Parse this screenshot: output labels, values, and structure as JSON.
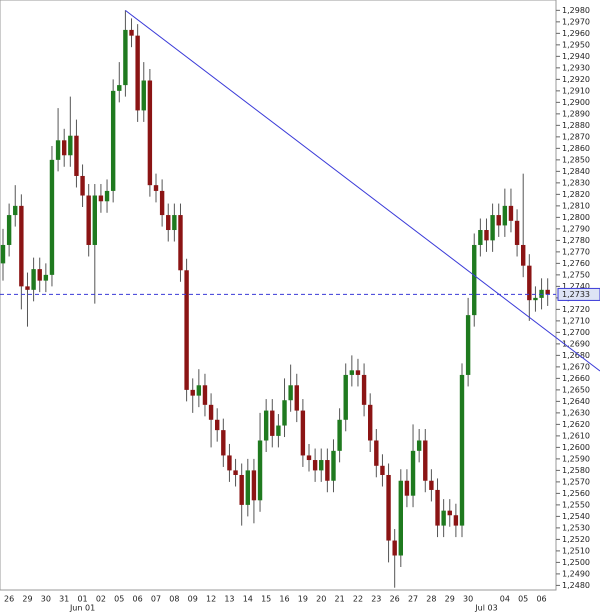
{
  "chart_data": {
    "type": "candlestick",
    "categories": [
      null,
      "26",
      null,
      null,
      "29",
      null,
      null,
      "30",
      null,
      null,
      "31",
      null,
      null,
      "01",
      null,
      null,
      "02",
      null,
      null,
      "05",
      null,
      null,
      "06",
      null,
      null,
      "07",
      null,
      null,
      "08",
      null,
      null,
      "09",
      null,
      null,
      "12",
      null,
      null,
      "13",
      null,
      null,
      "14",
      null,
      null,
      "15",
      null,
      null,
      "16",
      null,
      null,
      "19",
      null,
      null,
      "20",
      null,
      null,
      "21",
      null,
      null,
      "22",
      null,
      null,
      "23",
      null,
      null,
      "26",
      null,
      null,
      "27",
      null,
      null,
      "28",
      null,
      null,
      "29",
      null,
      null,
      "30",
      null,
      null,
      null,
      null,
      null,
      "04",
      null,
      null,
      "05",
      null,
      null,
      "06",
      null
    ],
    "month_labels": [
      null,
      null,
      null,
      null,
      null,
      null,
      null,
      null,
      null,
      null,
      null,
      null,
      null,
      "Jun 01",
      null,
      null,
      null,
      null,
      null,
      null,
      null,
      null,
      null,
      null,
      null,
      null,
      null,
      null,
      null,
      null,
      null,
      null,
      null,
      null,
      null,
      null,
      null,
      null,
      null,
      null,
      null,
      null,
      null,
      null,
      null,
      null,
      null,
      null,
      null,
      null,
      null,
      null,
      null,
      null,
      null,
      null,
      null,
      null,
      null,
      null,
      null,
      null,
      null,
      null,
      null,
      null,
      null,
      null,
      null,
      null,
      null,
      null,
      null,
      null,
      null,
      null,
      null,
      null,
      null,
      "Jul 03",
      null,
      null,
      null,
      null,
      null,
      null,
      null,
      null,
      null,
      null
    ],
    "open": [
      1.276,
      1.2776,
      1.2802,
      1.281,
      1.274,
      1.2737,
      1.2755,
      1.2745,
      1.275,
      1.285,
      1.2867,
      1.2854,
      1.2871,
      1.2836,
      1.2819,
      1.2776,
      1.2819,
      1.2814,
      1.2823,
      1.291,
      1.2915,
      1.2963,
      1.2958,
      1.2893,
      1.2919,
      1.2828,
      1.2823,
      1.2802,
      1.2789,
      1.2802,
      1.2754,
      1.265,
      1.2645,
      1.2654,
      1.2637,
      1.2624,
      1.2615,
      1.2593,
      1.258,
      1.2576,
      1.255,
      1.258,
      1.2554,
      1.2606,
      1.2632,
      1.261,
      1.2619,
      1.2641,
      1.2654,
      1.2632,
      1.2593,
      1.2589,
      1.258,
      1.2589,
      1.2571,
      1.2597,
      1.2624,
      1.2663,
      1.2667,
      1.2663,
      1.2637,
      1.2606,
      1.2584,
      1.2576,
      1.2519,
      1.2506,
      1.2571,
      1.2558,
      1.2597,
      1.2606,
      1.2571,
      1.2563,
      1.2532,
      1.2545,
      1.2541,
      1.2532,
      1.2663,
      1.2715,
      1.2776,
      1.2789,
      1.278,
      1.2802,
      1.2793,
      1.281,
      1.2797,
      1.2776,
      1.2758,
      1.2728,
      1.273,
      1.2737
    ],
    "high": [
      1.279,
      1.2812,
      1.2828,
      1.282,
      1.2752,
      1.2765,
      1.2765,
      1.276,
      1.2862,
      1.2895,
      1.2877,
      1.2905,
      1.2885,
      1.2846,
      1.2829,
      1.2829,
      1.2829,
      1.2833,
      1.292,
      1.2935,
      1.298,
      1.2973,
      1.2968,
      1.2935,
      1.2929,
      1.2838,
      1.2833,
      1.2812,
      1.2812,
      1.2812,
      1.2764,
      1.266,
      1.2668,
      1.2664,
      1.2647,
      1.2634,
      1.2625,
      1.2603,
      1.259,
      1.2586,
      1.259,
      1.259,
      1.263,
      1.2642,
      1.2642,
      1.2629,
      1.266,
      1.2672,
      1.2664,
      1.2642,
      1.2603,
      1.2599,
      1.2599,
      1.2599,
      1.2607,
      1.2634,
      1.2673,
      1.268,
      1.2677,
      1.2673,
      1.2647,
      1.2616,
      1.2594,
      1.2586,
      1.2529,
      1.2581,
      1.2581,
      1.262,
      1.2616,
      1.2616,
      1.2581,
      1.2573,
      1.2555,
      1.2555,
      1.2551,
      1.2673,
      1.273,
      1.2786,
      1.2799,
      1.2799,
      1.2812,
      1.2812,
      1.2825,
      1.2825,
      1.2807,
      1.2838,
      1.2768,
      1.274,
      1.2747,
      1.2747
    ],
    "low": [
      1.2745,
      1.2766,
      1.2792,
      1.272,
      1.2705,
      1.2727,
      1.2735,
      1.2735,
      1.274,
      1.284,
      1.2844,
      1.2844,
      1.2826,
      1.2809,
      1.2766,
      1.2725,
      1.2804,
      1.2804,
      1.2813,
      1.29,
      1.2905,
      1.2948,
      1.2883,
      1.2883,
      1.2818,
      1.2813,
      1.2792,
      1.2779,
      1.2779,
      1.2744,
      1.264,
      1.263,
      1.2635,
      1.2627,
      1.26,
      1.2605,
      1.2583,
      1.257,
      1.2566,
      1.2532,
      1.254,
      1.2534,
      1.2544,
      1.2596,
      1.26,
      1.26,
      1.2609,
      1.2631,
      1.2622,
      1.2583,
      1.2579,
      1.257,
      1.257,
      1.2561,
      1.2561,
      1.2587,
      1.2614,
      1.2653,
      1.2653,
      1.2627,
      1.2596,
      1.2574,
      1.2566,
      1.25,
      1.2478,
      1.2496,
      1.2548,
      1.2548,
      1.2587,
      1.2561,
      1.2553,
      1.2522,
      1.2522,
      1.2531,
      1.2522,
      1.2522,
      1.2653,
      1.2705,
      1.2766,
      1.277,
      1.277,
      1.2783,
      1.2783,
      1.2787,
      1.2766,
      1.2748,
      1.271,
      1.2718,
      1.272,
      1.2723
    ],
    "close": [
      1.2776,
      1.2802,
      1.281,
      1.274,
      1.2737,
      1.2755,
      1.2745,
      1.275,
      1.285,
      1.2867,
      1.2854,
      1.2871,
      1.2836,
      1.2819,
      1.2776,
      1.2819,
      1.2814,
      1.2823,
      1.291,
      1.2915,
      1.2963,
      1.2958,
      1.2893,
      1.2919,
      1.2828,
      1.2823,
      1.2802,
      1.2789,
      1.2802,
      1.2754,
      1.265,
      1.2645,
      1.2654,
      1.2637,
      1.2624,
      1.2615,
      1.2593,
      1.258,
      1.2576,
      1.255,
      1.258,
      1.2554,
      1.2606,
      1.2632,
      1.261,
      1.2619,
      1.2641,
      1.2654,
      1.2632,
      1.2593,
      1.2589,
      1.258,
      1.2589,
      1.2571,
      1.2597,
      1.2624,
      1.2663,
      1.2667,
      1.2663,
      1.2637,
      1.2606,
      1.2584,
      1.2576,
      1.2519,
      1.2506,
      1.2571,
      1.2558,
      1.2597,
      1.2606,
      1.2571,
      1.2563,
      1.2532,
      1.2545,
      1.2541,
      1.2532,
      1.2663,
      1.2715,
      1.2776,
      1.2789,
      1.278,
      1.2802,
      1.2793,
      1.281,
      1.2797,
      1.2776,
      1.2758,
      1.2728,
      1.273,
      1.2737,
      1.2733
    ],
    "up_color": "#1f7a1f",
    "down_color": "#8b1414",
    "ylim": [
      1.2476,
      1.2989
    ],
    "yticks": [
      {
        "value": 1.248,
        "label": "1,2480"
      },
      {
        "value": 1.249,
        "label": "1,2490"
      },
      {
        "value": 1.25,
        "label": "1,2500"
      },
      {
        "value": 1.251,
        "label": "1,2510"
      },
      {
        "value": 1.252,
        "label": "1,2520"
      },
      {
        "value": 1.253,
        "label": "1,2530"
      },
      {
        "value": 1.254,
        "label": "1,2540"
      },
      {
        "value": 1.255,
        "label": "1,2550"
      },
      {
        "value": 1.256,
        "label": "1,2560"
      },
      {
        "value": 1.257,
        "label": "1,2570"
      },
      {
        "value": 1.258,
        "label": "1,2580"
      },
      {
        "value": 1.259,
        "label": "1,2590"
      },
      {
        "value": 1.26,
        "label": "1,2600"
      },
      {
        "value": 1.261,
        "label": "1,2610"
      },
      {
        "value": 1.262,
        "label": "1,2620"
      },
      {
        "value": 1.263,
        "label": "1,2630"
      },
      {
        "value": 1.264,
        "label": "1,2640"
      },
      {
        "value": 1.265,
        "label": "1,2650"
      },
      {
        "value": 1.266,
        "label": "1,2660"
      },
      {
        "value": 1.267,
        "label": "1,2670"
      },
      {
        "value": 1.268,
        "label": "1,2680"
      },
      {
        "value": 1.269,
        "label": "1,2690"
      },
      {
        "value": 1.27,
        "label": "1,2700"
      },
      {
        "value": 1.271,
        "label": "1,2710"
      },
      {
        "value": 1.272,
        "label": "1,2720"
      },
      {
        "value": 1.273,
        "label": "1,2730"
      },
      {
        "value": 1.274,
        "label": "1,2740"
      },
      {
        "value": 1.275,
        "label": "1,2750"
      },
      {
        "value": 1.276,
        "label": "1,2760"
      },
      {
        "value": 1.277,
        "label": "1,2770"
      },
      {
        "value": 1.278,
        "label": "1,2780"
      },
      {
        "value": 1.279,
        "label": "1,2790"
      },
      {
        "value": 1.28,
        "label": "1,2800"
      },
      {
        "value": 1.281,
        "label": "1,2810"
      },
      {
        "value": 1.282,
        "label": "1,2820"
      },
      {
        "value": 1.283,
        "label": "1,2830"
      },
      {
        "value": 1.284,
        "label": "1,2840"
      },
      {
        "value": 1.285,
        "label": "1,2850"
      },
      {
        "value": 1.286,
        "label": "1,2860"
      },
      {
        "value": 1.287,
        "label": "1,2870"
      },
      {
        "value": 1.288,
        "label": "1,2880"
      },
      {
        "value": 1.289,
        "label": "1,2890"
      },
      {
        "value": 1.29,
        "label": "1,2900"
      },
      {
        "value": 1.291,
        "label": "1,2910"
      },
      {
        "value": 1.292,
        "label": "1,2920"
      },
      {
        "value": 1.293,
        "label": "1,2930"
      },
      {
        "value": 1.294,
        "label": "1,2940"
      },
      {
        "value": 1.295,
        "label": "1,2950"
      },
      {
        "value": 1.296,
        "label": "1,2960"
      },
      {
        "value": 1.297,
        "label": "1,2970"
      },
      {
        "value": 1.298,
        "label": "1,2980"
      }
    ],
    "price_line": {
      "value": 1.2733,
      "label": "1,2733",
      "color": "#3a3ad8"
    },
    "trendline": {
      "values": [
        1.298,
        1.2701
      ],
      "color": "#3a3ad8"
    }
  }
}
